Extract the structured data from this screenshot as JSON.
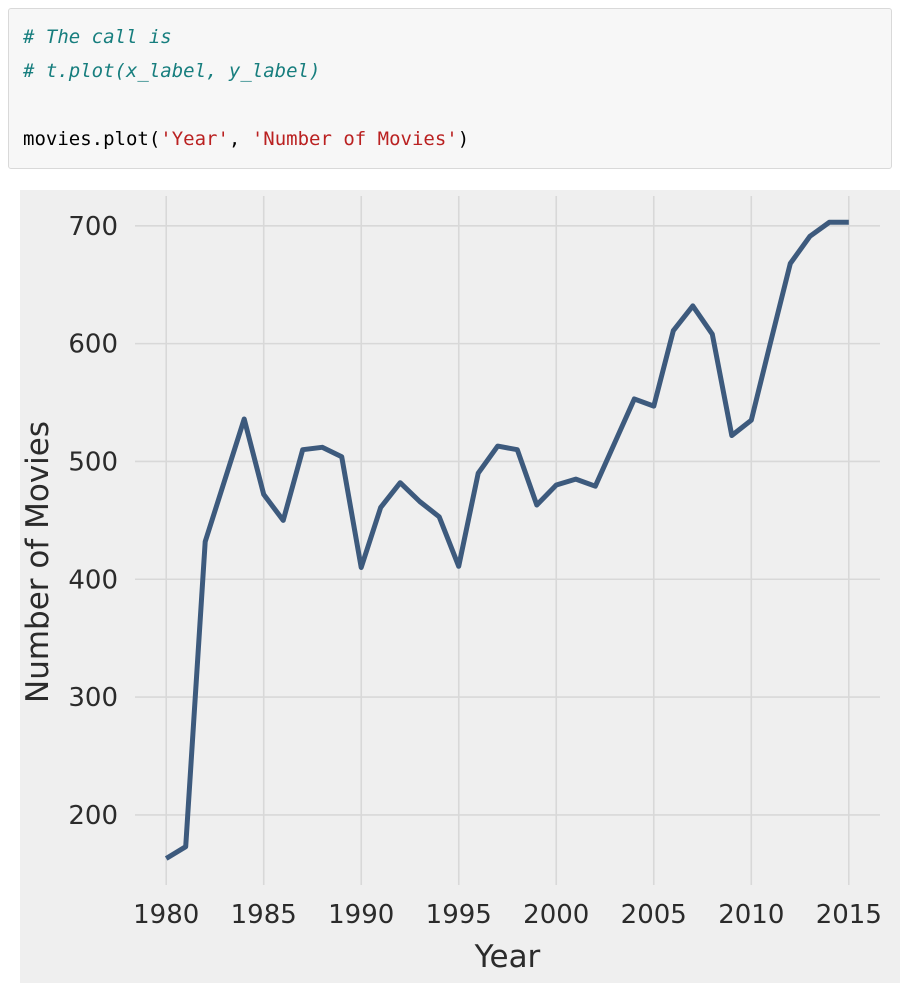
{
  "code_cell": {
    "language": "python",
    "lines": [
      {
        "type": "comment",
        "text": "# The call is"
      },
      {
        "type": "comment",
        "text": "# t.plot(x_label, y_label)"
      },
      {
        "type": "blank",
        "text": ""
      },
      {
        "type": "code",
        "segments": [
          {
            "text": "movies.plot(",
            "kind": "plain"
          },
          {
            "text": "'Year'",
            "kind": "string"
          },
          {
            "text": ", ",
            "kind": "plain"
          },
          {
            "text": "'Number of Movies'",
            "kind": "string"
          },
          {
            "text": ")",
            "kind": "plain"
          }
        ]
      }
    ],
    "colors": {
      "comment": "#177e7e",
      "string": "#ba2121",
      "plain": "#000000",
      "cell_background": "#f7f7f7",
      "cell_border": "#d9d9d9"
    }
  },
  "chart_data": {
    "type": "line",
    "title": "",
    "xlabel": "Year",
    "ylabel": "Number of Movies",
    "x": [
      1980,
      1981,
      1982,
      1983,
      1984,
      1985,
      1986,
      1987,
      1988,
      1989,
      1990,
      1991,
      1992,
      1993,
      1994,
      1995,
      1996,
      1997,
      1998,
      1999,
      2000,
      2001,
      2002,
      2003,
      2004,
      2005,
      2006,
      2007,
      2008,
      2009,
      2010,
      2011,
      2012,
      2013,
      2014,
      2015
    ],
    "series": [
      {
        "name": "Number of Movies",
        "values": [
          163,
          173,
          432,
          484,
          536,
          472,
          450,
          510,
          512,
          504,
          410,
          461,
          482,
          466,
          453,
          411,
          490,
          513,
          510,
          463,
          480,
          485,
          479,
          516,
          553,
          547,
          611,
          632,
          608,
          522,
          535,
          602,
          668,
          691,
          703,
          703
        ]
      }
    ],
    "x_ticks": [
      1980,
      1985,
      1990,
      1995,
      2000,
      2005,
      2010,
      2015
    ],
    "y_ticks": [
      200,
      300,
      400,
      500,
      600,
      700
    ],
    "xlim": [
      1978.4,
      2016.6
    ],
    "ylim": [
      140.5,
      725.3
    ],
    "grid": true,
    "legend": "none",
    "colors": {
      "line": "#3d5a7d",
      "figure_background": "#efefef",
      "gridline": "#d8d8d8",
      "tick_text": "#2b2b2b",
      "axis_label_text": "#2b2b2b"
    }
  }
}
